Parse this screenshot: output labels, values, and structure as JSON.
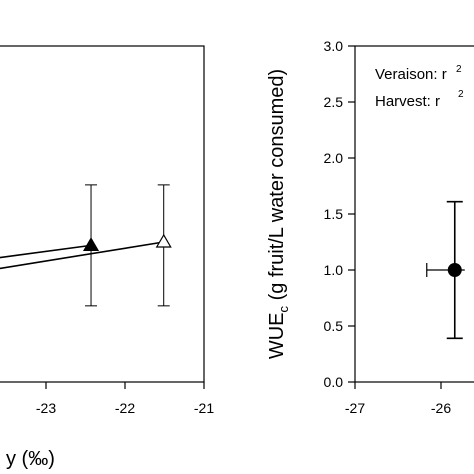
{
  "chart_data": [
    {
      "type": "scatter",
      "title": "",
      "xlabel_partial": "y (‰)",
      "ylabel": "",
      "xlim": [
        -24.5,
        -21
      ],
      "ylim": [
        0,
        3.0
      ],
      "x_ticks": [
        "-23",
        "-22",
        "-21"
      ],
      "series": [
        {
          "marker": "filled-triangle",
          "points": [
            {
              "x": -22.43,
              "y": 1.22,
              "err_low": 0.68,
              "err_high": 1.76
            }
          ],
          "fit": {
            "x": [
              -24.5,
              -22.43
            ],
            "y": [
              1.025,
              1.22
            ]
          }
        },
        {
          "marker": "open-triangle",
          "points": [
            {
              "x": -21.51,
              "y": 1.25,
              "err_low": 0.68,
              "err_high": 1.76
            }
          ],
          "fit": {
            "x": [
              -24.5,
              -21.51
            ],
            "y": [
              0.91,
              1.25
            ]
          }
        }
      ]
    },
    {
      "type": "scatter",
      "title": "",
      "xlabel": "",
      "ylabel": "WUEc (g fruit/L water consumed)",
      "ylabel_main": "WUE",
      "ylabel_sub": "c",
      "ylabel_rest": " (g fruit/L water consumed)",
      "xlim": [
        -27,
        -25.3
      ],
      "ylim": [
        0,
        3.0
      ],
      "x_ticks": [
        "-27",
        "-26"
      ],
      "y_ticks": [
        "0.0",
        "0.5",
        "1.0",
        "1.5",
        "2.0",
        "2.5",
        "3.0"
      ],
      "annotations": [
        "Veraison: r",
        "Harvest: r"
      ],
      "series": [
        {
          "marker": "filled-circle",
          "points": [
            {
              "x": -25.84,
              "y": 1.0,
              "err_low": 0.39,
              "err_high": 1.61
            }
          ]
        }
      ]
    }
  ]
}
